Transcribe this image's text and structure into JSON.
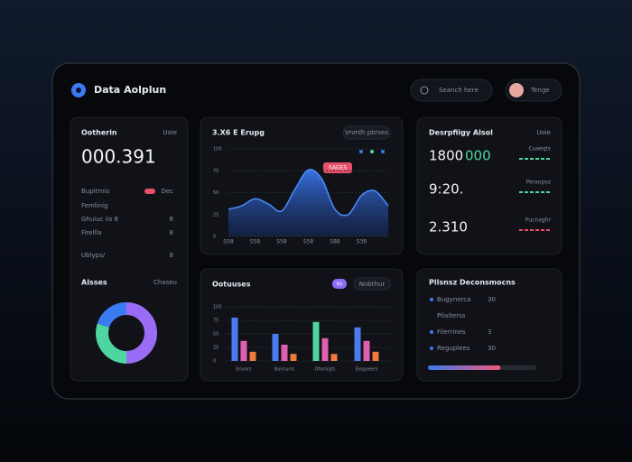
{
  "header": {
    "title": "Data Aolplun",
    "search": "Seanch here",
    "user": "Tenge"
  },
  "summary": {
    "title": "Ootherin",
    "link": "Uoie",
    "value": "000.391",
    "rows": [
      {
        "label": "Bupitrnis",
        "value": "Dec"
      },
      {
        "label": "Femlinig",
        "value": ""
      },
      {
        "label": "Ghuiuc iis 8",
        "value": "8"
      },
      {
        "label": "Firellla",
        "value": "8"
      },
      {
        "label": "Ublyps/",
        "value": "8"
      }
    ]
  },
  "breakdown": {
    "type": "pie",
    "title": "Alsses",
    "link": "Chaseu",
    "values": [
      50,
      30,
      20
    ],
    "colors": [
      "#9a6cf5",
      "#4fd6a0",
      "#3b7bf0"
    ]
  },
  "trend": {
    "type": "area",
    "title": "3.X6 E Erupg",
    "button": "Vnmlh pbrses",
    "badge": "SAGES",
    "color": "#4a8cff",
    "x": [
      0,
      1,
      2,
      3,
      4,
      5,
      6,
      7,
      8,
      9,
      10,
      11,
      12
    ],
    "values": [
      31,
      35,
      43,
      37,
      29,
      54,
      76,
      66,
      31,
      25,
      47,
      52,
      35
    ],
    "xlim": [
      0,
      12
    ],
    "xticks": [
      {
        "value": 0,
        "label": "S58"
      },
      {
        "value": 2,
        "label": "S58"
      },
      {
        "value": 4,
        "label": "S58"
      },
      {
        "value": 6,
        "label": "S58"
      },
      {
        "value": 8,
        "label": "S88"
      },
      {
        "value": 10,
        "label": "S38"
      }
    ],
    "ylim": [
      0,
      100
    ],
    "yticks": [
      0,
      25,
      50,
      75,
      100
    ],
    "grid": true
  },
  "stats": {
    "title": "Desrpfiigy Alsol",
    "link": "Uoie",
    "items": [
      {
        "value": "1800",
        "delta": "000",
        "note": "Cuaeqts"
      },
      {
        "value": "9:20.",
        "note": "Peraopoz"
      },
      {
        "value": "2.310",
        "note": "Pucnaghr"
      }
    ]
  },
  "bars": {
    "type": "bar",
    "title": "Ootuuses",
    "tag": "Fih",
    "button": "Nobthur",
    "categories": [
      "Enunrs",
      "Buncurrs",
      "Ofanirgts",
      "Elogoeers"
    ],
    "ylim": [
      0,
      100
    ],
    "yticks": [
      0,
      25,
      50,
      75,
      100
    ],
    "grid": true,
    "series": [
      {
        "color": "#4a7cf0",
        "colors": [
          "#4a7cf0",
          "#4a7cf0",
          "#4fd6a0",
          "#4a7cf0"
        ],
        "values": [
          80,
          50,
          72,
          62
        ]
      },
      {
        "color": "#e05fb0",
        "values": [
          37,
          30,
          42,
          37
        ]
      },
      {
        "color": "#f07a3c",
        "values": [
          17,
          13,
          13,
          17
        ]
      }
    ]
  },
  "progress": {
    "title": "Pllsnsz Deconsmocns",
    "value": 67,
    "items": [
      {
        "label": "Bugynerca",
        "value": "30"
      },
      {
        "label": "Pilaiterss",
        "value": ""
      },
      {
        "label": "Fiierrines",
        "value": "3"
      },
      {
        "label": "Reguplees",
        "value": "30"
      }
    ]
  }
}
